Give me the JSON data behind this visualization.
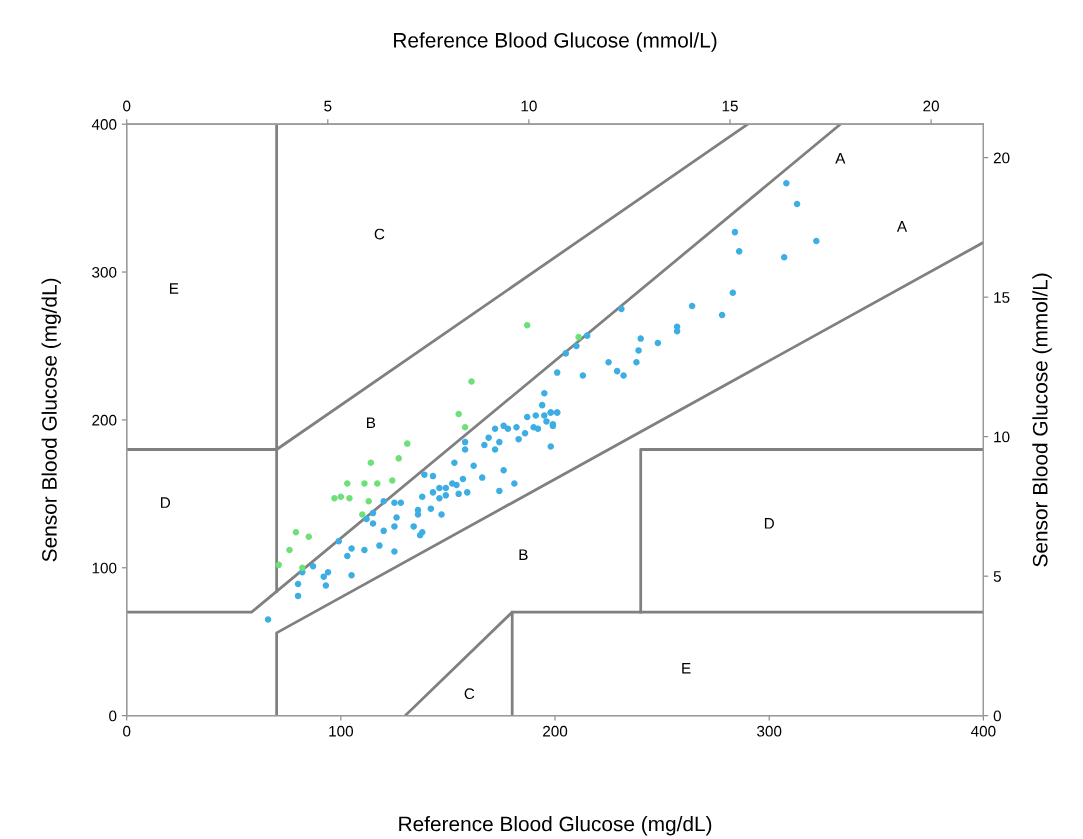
{
  "chart_data": {
    "type": "scatter",
    "xlabel": "Reference Blood Glucose (mg/dL)",
    "ylabel": "Sensor Blood Glucose (mg/dL)",
    "x2label": "Reference Blood Glucose (mmol/L)",
    "y2label": "Sensor Blood Glucose (mmol/L)",
    "xlim": [
      0,
      400
    ],
    "xticks": [
      0,
      100,
      200,
      300,
      400
    ],
    "ylim": [
      0,
      400
    ],
    "yticks": [
      0,
      100,
      200,
      300,
      400
    ],
    "x2lim": [
      0,
      21.3
    ],
    "x2ticks": [
      0,
      5,
      10,
      15,
      20
    ],
    "y2lim": [
      0,
      21.2
    ],
    "y2ticks": [
      0,
      5,
      10,
      15,
      20
    ],
    "grid": false,
    "legend": false,
    "series": [
      {
        "type": "line",
        "color": "#808080",
        "x": [
          0,
          58.3,
          333.3
        ],
        "values": [
          70,
          70,
          400
        ]
      },
      {
        "type": "line",
        "color": "#808080",
        "x": [
          70,
          70
        ],
        "values": [
          84,
          400
        ]
      },
      {
        "type": "line",
        "color": "#808080",
        "x": [
          0,
          70,
          290
        ],
        "values": [
          180,
          180,
          400
        ]
      },
      {
        "type": "line",
        "color": "#808080",
        "x": [
          70,
          70,
          400
        ],
        "values": [
          0,
          56,
          320
        ]
      },
      {
        "type": "line",
        "color": "#808080",
        "x": [
          130,
          180,
          180
        ],
        "values": [
          0,
          70,
          0
        ]
      },
      {
        "type": "line",
        "color": "#808080",
        "x": [
          180,
          400
        ],
        "values": [
          70,
          70
        ]
      },
      {
        "type": "line",
        "color": "#808080",
        "x": [
          240,
          240,
          400
        ],
        "values": [
          70,
          180,
          180
        ]
      },
      {
        "marker": "circle",
        "color": "#3daee3",
        "x": [
          194,
          187,
          191,
          195,
          198,
          201,
          196,
          199,
          172,
          176,
          178,
          182,
          186,
          190,
          192,
          183,
          198,
          169,
          167,
          174,
          172,
          158,
          158,
          153,
          162,
          176,
          139,
          143,
          152,
          157,
          154,
          166,
          181,
          146,
          149,
          143,
          155,
          159,
          174,
          146,
          149,
          138,
          120,
          125,
          128,
          136,
          142,
          136,
          147,
          115,
          112,
          115,
          126,
          125,
          134,
          120,
          138,
          137,
          99,
          105,
          111,
          118,
          103,
          125,
          87,
          82,
          92,
          94,
          105,
          80,
          93,
          80,
          66,
          231,
          264,
          278,
          257,
          257,
          215,
          240,
          248,
          210,
          239,
          205,
          225,
          238,
          229,
          232,
          201,
          213,
          195,
          198,
          201,
          199,
          308,
          313,
          284,
          286,
          322,
          307,
          283
        ],
        "values": [
          210,
          202,
          203,
          203,
          205,
          205,
          199,
          197,
          194,
          196,
          194,
          195,
          191,
          195,
          194,
          187,
          182,
          188,
          183,
          185,
          180,
          185,
          180,
          171,
          169,
          166,
          163,
          162,
          157,
          160,
          156,
          161,
          157,
          154,
          154,
          151,
          150,
          151,
          152,
          147,
          149,
          148,
          145,
          144,
          144,
          139,
          140,
          136,
          136,
          137,
          133,
          130,
          134,
          128,
          128,
          125,
          124,
          122,
          118,
          113,
          112,
          115,
          108,
          111,
          101,
          97,
          94,
          97,
          95,
          89,
          88,
          81,
          65,
          275,
          277,
          271,
          263,
          260,
          257,
          255,
          252,
          250,
          247,
          245,
          239,
          239,
          233,
          230,
          232,
          230,
          218,
          205,
          205,
          196,
          360,
          346,
          327,
          314,
          321,
          310,
          286
        ]
      },
      {
        "marker": "circle",
        "color": "#6ee07a",
        "x": [
          155,
          158,
          131,
          114,
          127,
          103,
          111,
          117,
          124,
          97,
          100,
          104,
          113,
          110,
          79,
          85,
          76,
          71,
          82,
          187,
          161,
          211
        ],
        "values": [
          204,
          195,
          184,
          171,
          174,
          157,
          157,
          157,
          159,
          147,
          148,
          147,
          145,
          136,
          124,
          121,
          112,
          102,
          100,
          264,
          226,
          256
        ]
      }
    ],
    "annotations": [
      "A",
      "A",
      "B",
      "B",
      "C",
      "C",
      "D",
      "D",
      "E",
      "E"
    ]
  }
}
